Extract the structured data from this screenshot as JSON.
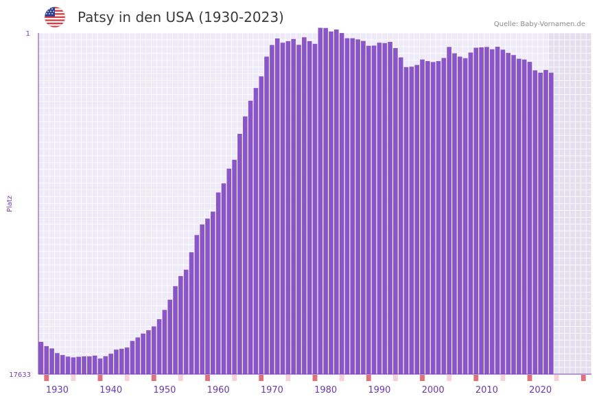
{
  "title": "Patsy in den USA (1930-2023)",
  "source": "Quelle: Baby-Vornamen.de",
  "colors": {
    "bar": "#8a55c6",
    "plot_bg": "#eeeaf8",
    "future_bg": "#e3dfee",
    "grid": "#ffffff",
    "tick_marker": "#e0707a",
    "tick_marker_light": "#f6d2d8",
    "axis": "#7a3fb0",
    "label": "#6a3aa8"
  },
  "chart_data": {
    "type": "bar",
    "title": "Patsy in den USA (1930-2023)",
    "ylabel": "Platz",
    "xlabel": "",
    "y_axis_inverted": true,
    "ylim": [
      1,
      17633
    ],
    "y_tick_labels": [
      "1",
      "17633"
    ],
    "xlim": [
      1927,
      2029
    ],
    "x_tick_labels": [
      "1930",
      "1940",
      "1950",
      "1960",
      "1970",
      "1980",
      "1990",
      "2000",
      "2010",
      "2020"
    ],
    "x_tick_values": [
      1930,
      1940,
      1950,
      1960,
      1970,
      1980,
      1990,
      2000,
      2010,
      2020
    ],
    "categories": [
      1927,
      1928,
      1929,
      1930,
      1931,
      1932,
      1933,
      1934,
      1935,
      1936,
      1937,
      1938,
      1939,
      1940,
      1941,
      1942,
      1943,
      1944,
      1945,
      1946,
      1947,
      1948,
      1949,
      1950,
      1951,
      1952,
      1953,
      1954,
      1955,
      1956,
      1957,
      1958,
      1959,
      1960,
      1961,
      1962,
      1963,
      1964,
      1965,
      1966,
      1967,
      1968,
      1969,
      1970,
      1971,
      1972,
      1973,
      1974,
      1975,
      1976,
      1977,
      1978,
      1979,
      1980,
      1981,
      1982,
      1983,
      1984,
      1985,
      1986,
      1987,
      1988,
      1989,
      1990,
      1991,
      1992,
      1993,
      1994,
      1995,
      1996,
      1997,
      1998,
      1999,
      2000,
      2001,
      2002,
      2003,
      2004,
      2005,
      2006,
      2007,
      2008,
      2009,
      2010,
      2011,
      2012,
      2013,
      2014,
      2015,
      2016,
      2017,
      2018,
      2019,
      2020,
      2021,
      2022
    ],
    "values": [
      1670,
      1450,
      1330,
      1090,
      990,
      910,
      870,
      900,
      920,
      920,
      960,
      810,
      930,
      1060,
      1270,
      1310,
      1380,
      1720,
      1900,
      2100,
      2270,
      2470,
      2840,
      3320,
      3850,
      4550,
      5070,
      5400,
      6300,
      7190,
      7740,
      8040,
      8400,
      9390,
      9860,
      10620,
      11080,
      12420,
      13320,
      14130,
      14790,
      15390,
      16410,
      17010,
      17350,
      17130,
      17210,
      17320,
      17020,
      17410,
      17210,
      17070,
      17900,
      17890,
      17710,
      17810,
      17630,
      17360,
      17360,
      17300,
      17220,
      16970,
      16980,
      17130,
      17110,
      17170,
      16850,
      16370,
      15870,
      15890,
      15980,
      16260,
      16180,
      16130,
      16180,
      16340,
      16910,
      16580,
      16410,
      16330,
      16620,
      16870,
      16890,
      16910,
      16790,
      16920,
      16770,
      16600,
      16490,
      16300,
      16260,
      16140,
      15700,
      15580,
      15720,
      15580
    ],
    "grid": true,
    "future_region_start": 2022,
    "decade_markers": [
      1928,
      1938,
      1948,
      1958,
      1968,
      1978,
      1988,
      1998,
      2008,
      2018,
      2028
    ],
    "half_decade_markers": [
      1933,
      1943,
      1953,
      1963,
      1973,
      1983,
      1993,
      2003,
      2013,
      2023
    ]
  }
}
